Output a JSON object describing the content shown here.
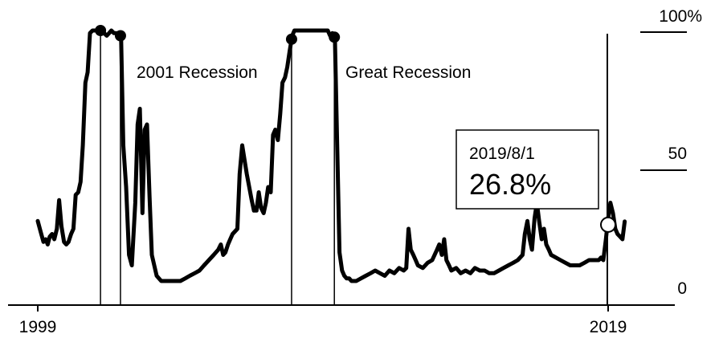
{
  "chart_data": {
    "type": "line",
    "title": "",
    "xlabel": "",
    "ylabel": "",
    "xlim": [
      1999.0,
      2021.0
    ],
    "ylim": [
      0,
      100
    ],
    "x_tick_labels": [
      {
        "x": 1999.0,
        "label": "1999"
      },
      {
        "x": 2019.0,
        "label": "2019"
      }
    ],
    "y_tick_labels": [
      {
        "y": 100,
        "label": "100%"
      },
      {
        "y": 50,
        "label": "50"
      },
      {
        "y": 0,
        "label": "0"
      }
    ],
    "recessions": [
      {
        "label": "2001 Recession",
        "start": 2001.2,
        "end": 2001.9
      },
      {
        "label": "Great Recession",
        "start": 2007.9,
        "end": 2009.4
      }
    ],
    "callout": {
      "date": "2019/8/1",
      "value": "26.8%",
      "x": 2019.0,
      "y": 26.8
    },
    "colors": {
      "line": "#000000",
      "marker_fill": "#ffffff",
      "background": "#ffffff"
    },
    "series": [
      {
        "values": [
          [
            1999.0,
            27
          ],
          [
            1999.1,
            23
          ],
          [
            1999.2,
            19
          ],
          [
            1999.28,
            20
          ],
          [
            1999.35,
            18
          ],
          [
            1999.42,
            21
          ],
          [
            1999.5,
            22
          ],
          [
            1999.58,
            20
          ],
          [
            1999.67,
            24
          ],
          [
            1999.75,
            35
          ],
          [
            1999.83,
            25
          ],
          [
            1999.92,
            19
          ],
          [
            2000.0,
            18
          ],
          [
            2000.08,
            19
          ],
          [
            2000.17,
            22
          ],
          [
            2000.25,
            24
          ],
          [
            2000.33,
            37
          ],
          [
            2000.42,
            38
          ],
          [
            2000.5,
            42
          ],
          [
            2000.58,
            56
          ],
          [
            2000.67,
            80
          ],
          [
            2000.75,
            84
          ],
          [
            2000.83,
            99
          ],
          [
            2000.92,
            100
          ],
          [
            2001.0,
            100
          ],
          [
            2001.08,
            100
          ],
          [
            2001.17,
            100
          ],
          [
            2001.25,
            100
          ],
          [
            2001.33,
            99
          ],
          [
            2001.42,
            98
          ],
          [
            2001.5,
            99
          ],
          [
            2001.58,
            100
          ],
          [
            2001.67,
            99
          ],
          [
            2001.75,
            99
          ],
          [
            2001.83,
            98
          ],
          [
            2001.92,
            98
          ],
          [
            2002.0,
            56
          ],
          [
            2002.1,
            40
          ],
          [
            2002.2,
            14
          ],
          [
            2002.3,
            10
          ],
          [
            2002.42,
            34
          ],
          [
            2002.5,
            64
          ],
          [
            2002.58,
            70
          ],
          [
            2002.67,
            30
          ],
          [
            2002.75,
            62
          ],
          [
            2002.83,
            64
          ],
          [
            2002.92,
            36
          ],
          [
            2003.0,
            14
          ],
          [
            2003.17,
            6
          ],
          [
            2003.33,
            4
          ],
          [
            2003.5,
            4
          ],
          [
            2003.67,
            4
          ],
          [
            2003.83,
            4
          ],
          [
            2004.0,
            4
          ],
          [
            2004.17,
            5
          ],
          [
            2004.33,
            6
          ],
          [
            2004.5,
            7
          ],
          [
            2004.67,
            8
          ],
          [
            2004.83,
            10
          ],
          [
            2005.0,
            12
          ],
          [
            2005.17,
            14
          ],
          [
            2005.33,
            16
          ],
          [
            2005.42,
            18
          ],
          [
            2005.5,
            14
          ],
          [
            2005.58,
            15
          ],
          [
            2005.67,
            18
          ],
          [
            2005.75,
            20
          ],
          [
            2005.83,
            22
          ],
          [
            2006.0,
            24
          ],
          [
            2006.08,
            45
          ],
          [
            2006.17,
            56
          ],
          [
            2006.33,
            45
          ],
          [
            2006.5,
            35
          ],
          [
            2006.58,
            31
          ],
          [
            2006.67,
            31
          ],
          [
            2006.75,
            38
          ],
          [
            2006.83,
            32
          ],
          [
            2006.92,
            30
          ],
          [
            2007.0,
            34
          ],
          [
            2007.08,
            40
          ],
          [
            2007.17,
            38
          ],
          [
            2007.25,
            60
          ],
          [
            2007.33,
            62
          ],
          [
            2007.42,
            58
          ],
          [
            2007.5,
            68
          ],
          [
            2007.58,
            80
          ],
          [
            2007.67,
            82
          ],
          [
            2007.75,
            86
          ],
          [
            2007.83,
            92
          ],
          [
            2007.92,
            98
          ],
          [
            2008.0,
            100
          ],
          [
            2008.17,
            100
          ],
          [
            2008.33,
            100
          ],
          [
            2008.5,
            100
          ],
          [
            2008.67,
            100
          ],
          [
            2008.83,
            100
          ],
          [
            2009.0,
            100
          ],
          [
            2009.17,
            100
          ],
          [
            2009.25,
            98
          ],
          [
            2009.33,
            99
          ],
          [
            2009.42,
            97
          ],
          [
            2009.5,
            55
          ],
          [
            2009.58,
            15
          ],
          [
            2009.67,
            8
          ],
          [
            2009.75,
            6
          ],
          [
            2009.83,
            5
          ],
          [
            2009.92,
            5
          ],
          [
            2010.0,
            4
          ],
          [
            2010.17,
            4
          ],
          [
            2010.33,
            5
          ],
          [
            2010.5,
            6
          ],
          [
            2010.67,
            7
          ],
          [
            2010.83,
            8
          ],
          [
            2011.0,
            7
          ],
          [
            2011.17,
            6
          ],
          [
            2011.33,
            8
          ],
          [
            2011.5,
            7
          ],
          [
            2011.67,
            9
          ],
          [
            2011.83,
            8
          ],
          [
            2011.92,
            9
          ],
          [
            2012.0,
            24
          ],
          [
            2012.08,
            16
          ],
          [
            2012.17,
            14
          ],
          [
            2012.25,
            12
          ],
          [
            2012.33,
            10
          ],
          [
            2012.5,
            9
          ],
          [
            2012.67,
            11
          ],
          [
            2012.83,
            12
          ],
          [
            2013.0,
            16
          ],
          [
            2013.08,
            18
          ],
          [
            2013.17,
            14
          ],
          [
            2013.25,
            20
          ],
          [
            2013.33,
            12
          ],
          [
            2013.42,
            10
          ],
          [
            2013.5,
            8
          ],
          [
            2013.67,
            9
          ],
          [
            2013.83,
            7
          ],
          [
            2014.0,
            8
          ],
          [
            2014.17,
            7
          ],
          [
            2014.33,
            9
          ],
          [
            2014.5,
            8
          ],
          [
            2014.67,
            8
          ],
          [
            2014.83,
            7
          ],
          [
            2015.0,
            7
          ],
          [
            2015.17,
            8
          ],
          [
            2015.33,
            9
          ],
          [
            2015.5,
            10
          ],
          [
            2015.67,
            11
          ],
          [
            2015.83,
            12
          ],
          [
            2016.0,
            14
          ],
          [
            2016.08,
            22
          ],
          [
            2016.17,
            27
          ],
          [
            2016.25,
            20
          ],
          [
            2016.33,
            16
          ],
          [
            2016.42,
            28
          ],
          [
            2016.5,
            34
          ],
          [
            2016.58,
            27
          ],
          [
            2016.67,
            20
          ],
          [
            2016.75,
            24
          ],
          [
            2016.83,
            18
          ],
          [
            2016.92,
            16
          ],
          [
            2017.0,
            14
          ],
          [
            2017.17,
            13
          ],
          [
            2017.33,
            12
          ],
          [
            2017.5,
            11
          ],
          [
            2017.67,
            10
          ],
          [
            2017.83,
            10
          ],
          [
            2018.0,
            10
          ],
          [
            2018.17,
            11
          ],
          [
            2018.33,
            12
          ],
          [
            2018.5,
            12
          ],
          [
            2018.67,
            12
          ],
          [
            2018.75,
            13
          ],
          [
            2018.83,
            12
          ],
          [
            2018.92,
            20
          ],
          [
            2019.0,
            28
          ],
          [
            2019.08,
            34
          ],
          [
            2019.17,
            30
          ],
          [
            2019.25,
            24
          ],
          [
            2019.33,
            22
          ],
          [
            2019.42,
            21
          ],
          [
            2019.5,
            20
          ],
          [
            2019.58,
            26.8
          ]
        ]
      }
    ]
  }
}
